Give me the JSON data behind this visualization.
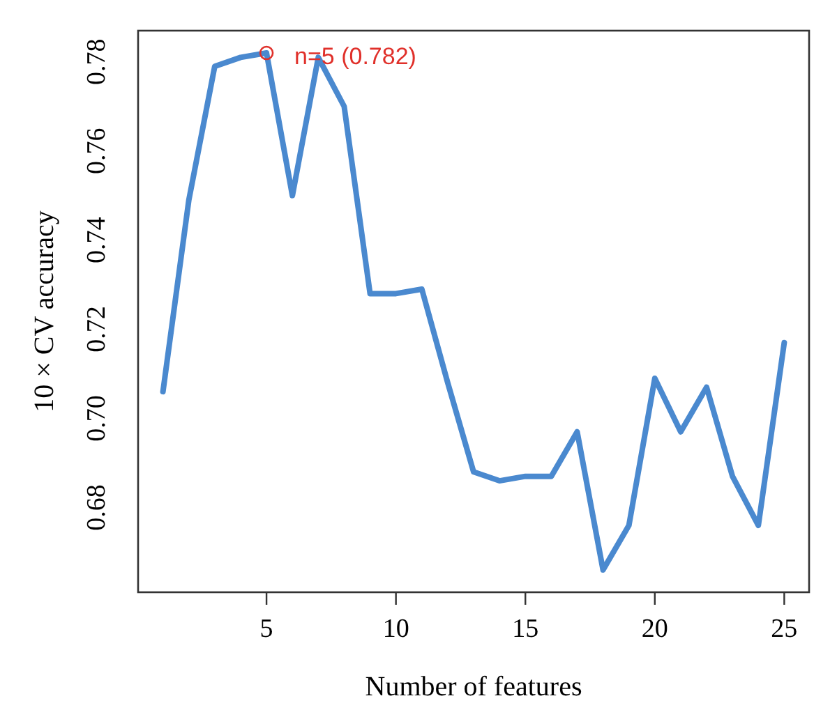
{
  "chart_data": {
    "type": "line",
    "xlabel": "Number of features",
    "ylabel": "10 × CV accuracy",
    "x": [
      1,
      2,
      3,
      4,
      5,
      6,
      7,
      8,
      9,
      10,
      11,
      12,
      13,
      14,
      15,
      16,
      17,
      18,
      19,
      20,
      21,
      22,
      23,
      24,
      25
    ],
    "series": [
      {
        "color": "#4a89cf",
        "values": [
          0.706,
          0.749,
          0.779,
          0.781,
          0.782,
          0.75,
          0.781,
          0.77,
          0.728,
          0.728,
          0.729,
          0.708,
          0.688,
          0.686,
          0.687,
          0.687,
          0.697,
          0.666,
          0.676,
          0.709,
          0.697,
          0.707,
          0.687,
          0.676,
          0.717
        ]
      },
      {
        "type": "scatter",
        "x": [
          5
        ],
        "values": [
          0.782
        ],
        "color": "#e0302a",
        "marker": "circle"
      }
    ],
    "annotations": [
      {
        "text": "n=5 (0.782)",
        "x": 5,
        "y": 0.782
      }
    ],
    "xlim": [
      0.04,
      25.96
    ],
    "ylim": [
      0.661,
      0.787
    ],
    "xticks": [
      5,
      10,
      15,
      20,
      25
    ],
    "yticks": [
      0.68,
      {
        "value": 0.7,
        "label": "0.70"
      },
      0.72,
      0.74,
      0.76,
      0.78
    ],
    "grid": false,
    "marker": "none",
    "line_style": "solid"
  }
}
